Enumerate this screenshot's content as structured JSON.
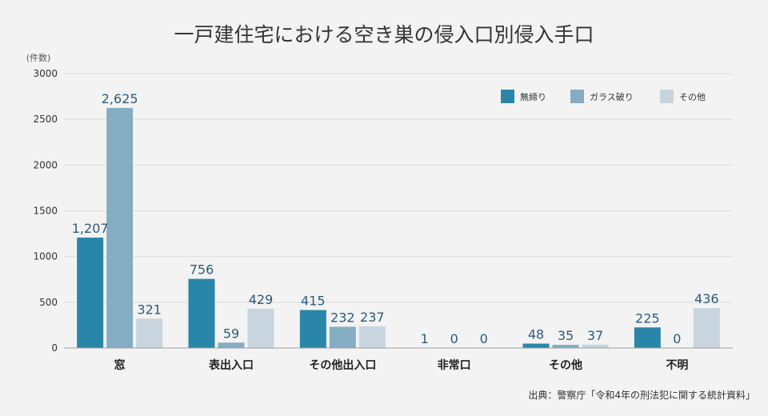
{
  "chart_data": {
    "type": "bar",
    "title": "一戸建住宅における空き巣の侵入口別侵入手口",
    "ylabel": "(件数)",
    "ylim": [
      0,
      3000
    ],
    "yticks": [
      0,
      500,
      1000,
      1500,
      2000,
      2500,
      3000
    ],
    "grid": true,
    "legend_position": "top-right",
    "categories": [
      "窓",
      "表出入口",
      "その他出入口",
      "非常口",
      "その他",
      "不明"
    ],
    "series": [
      {
        "name": "無締り",
        "color": "#2a86a8",
        "values": [
          1207,
          756,
          415,
          1,
          48,
          225
        ],
        "labels": [
          "1,207",
          "756",
          "415",
          "1",
          "48",
          "225"
        ]
      },
      {
        "name": "ガラス破り",
        "color": "#84adc4",
        "values": [
          2625,
          59,
          232,
          0,
          35,
          0
        ],
        "labels": [
          "2,625",
          "59",
          "232",
          "0",
          "35",
          "0"
        ]
      },
      {
        "name": "その他",
        "color": "#c8d5de",
        "values": [
          321,
          429,
          237,
          0,
          37,
          436
        ],
        "labels": [
          "321",
          "429",
          "237",
          "0",
          "37",
          "436"
        ]
      }
    ],
    "source": "出典：警察庁「令和4年の刑法犯に関する統計資料」"
  }
}
